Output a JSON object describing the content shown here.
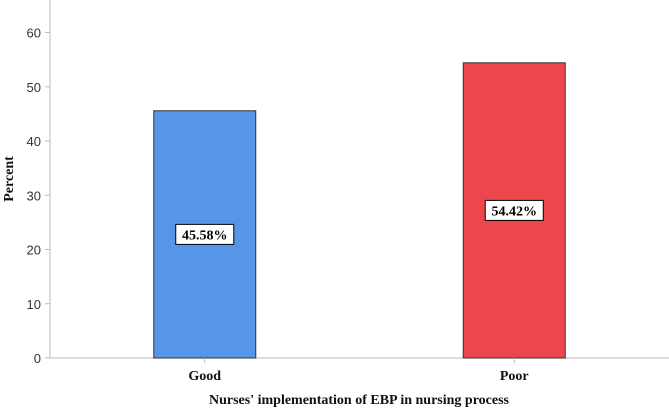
{
  "chart_data": {
    "type": "bar",
    "categories": [
      "Good",
      "Poor"
    ],
    "values": [
      45.58,
      54.42
    ],
    "data_labels": [
      "45.58%",
      "54.42%"
    ],
    "colors": [
      "#5596e6",
      "#ec474c"
    ],
    "xlabel": "Nurses' implementation of EBP in nursing process",
    "ylabel": "Percent",
    "ylim": [
      0,
      66
    ],
    "yticks": [
      0,
      10,
      20,
      30,
      40,
      50,
      60
    ],
    "grid": false,
    "legend": "none"
  }
}
